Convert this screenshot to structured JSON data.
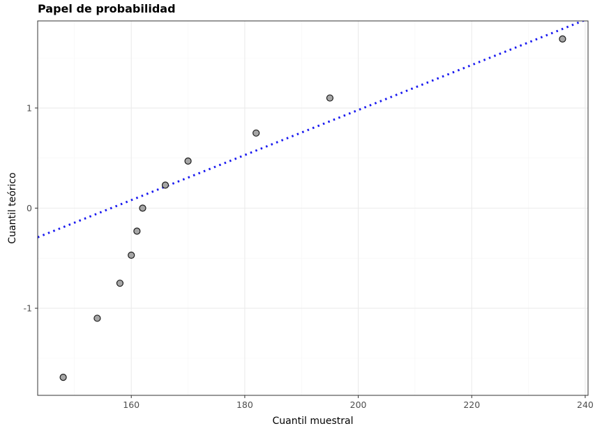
{
  "chart_data": {
    "type": "scatter",
    "title": "Papel de probabilidad",
    "xlabel": "Cuantil muestral",
    "ylabel": "Cuantil teórico",
    "xlim": [
      143.5,
      240.5
    ],
    "ylim": [
      -1.87,
      1.87
    ],
    "x_ticks": [
      160,
      180,
      200,
      220,
      240
    ],
    "x_tick_labels": [
      "160",
      "180",
      "200",
      "220",
      "240"
    ],
    "y_ticks": [
      -1,
      0,
      1
    ],
    "y_tick_labels": [
      "-1",
      "0",
      "1"
    ],
    "grid": true,
    "points": [
      {
        "x": 148,
        "y": -1.69
      },
      {
        "x": 154,
        "y": -1.1
      },
      {
        "x": 158,
        "y": -0.75
      },
      {
        "x": 160,
        "y": -0.47
      },
      {
        "x": 161,
        "y": -0.23
      },
      {
        "x": 162,
        "y": 0.0
      },
      {
        "x": 166,
        "y": 0.23
      },
      {
        "x": 170,
        "y": 0.47
      },
      {
        "x": 182,
        "y": 0.75
      },
      {
        "x": 195,
        "y": 1.1
      },
      {
        "x": 236,
        "y": 1.69
      }
    ],
    "reference_line": {
      "intercept": -3.52,
      "slope": 0.0225,
      "style": "dotted"
    },
    "colors": {
      "point_fill": "#a6a6a6",
      "point_stroke": "#1a1a1a",
      "reference_line": "#1a1af0"
    }
  }
}
